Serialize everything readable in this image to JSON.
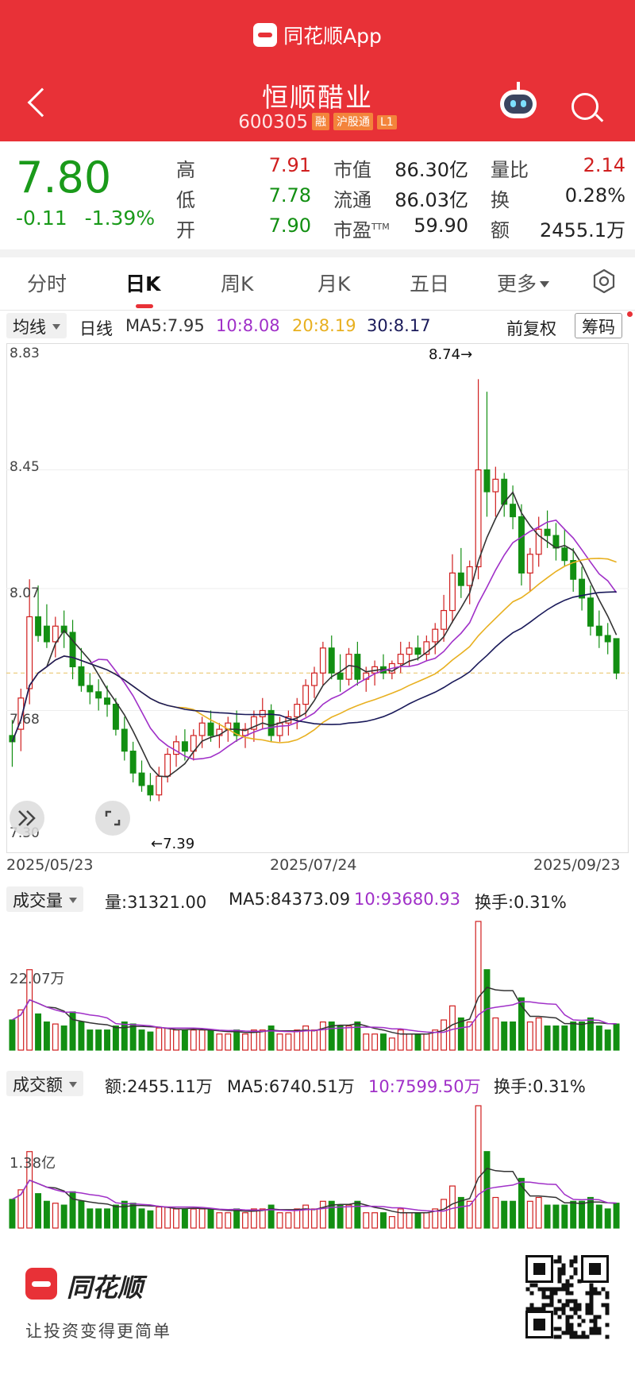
{
  "app": {
    "brand": "同花顺App",
    "back_icon": "back-arrow-icon",
    "robot_icon": "robot-assistant-icon",
    "search_icon": "search-icon"
  },
  "stock": {
    "name": "恒顺醋业",
    "code": "600305",
    "tags": [
      "融",
      "沪股通",
      "L1"
    ]
  },
  "quote": {
    "price": "7.80",
    "change": "-0.11",
    "change_pct": "-1.39%",
    "fields": [
      {
        "label": "高",
        "value": "7.91"
      },
      {
        "label": "低",
        "value": "7.78"
      },
      {
        "label": "开",
        "value": "7.90"
      },
      {
        "label": "市值",
        "value": "86.30亿"
      },
      {
        "label": "流通",
        "value": "86.03亿"
      },
      {
        "label": "市盈",
        "sup": "TTM",
        "value": "59.90"
      },
      {
        "label": "量比",
        "value": "2.14"
      },
      {
        "label": "换",
        "value": "0.28%"
      },
      {
        "label": "额",
        "value": "2455.1万"
      }
    ]
  },
  "tabs": [
    "分时",
    "日K",
    "周K",
    "月K",
    "五日",
    "更多"
  ],
  "active_tab": "日K",
  "indicator": {
    "dropdown": "均线",
    "period": "日线",
    "ma5": "MA5:7.95",
    "ma10": "10:8.08",
    "ma20": "20:8.19",
    "ma30": "30:8.17",
    "adjust": "前复权",
    "chips_button": "筹码"
  },
  "kline": {
    "y_labels": [
      "8.83",
      "8.45",
      "8.07",
      "7.68",
      "7.30"
    ],
    "x_labels": [
      "2025/05/23",
      "2025/07/24",
      "2025/09/23"
    ],
    "high_note": "8.74→",
    "low_note": "←7.39"
  },
  "volume": {
    "dropdown": "成交量",
    "value": "量:31321.00",
    "ma5": "MA5:84373.09",
    "ma10": "10:93680.93",
    "turnover": "换手:0.31%",
    "axis_label": "22.07万"
  },
  "amount": {
    "dropdown": "成交额",
    "value": "额:2455.11万",
    "ma5": "MA5:6740.51万",
    "ma10": "10:7599.50万",
    "turnover": "换手:0.31%",
    "axis_label": "1.38亿"
  },
  "footer": {
    "name": "同花顺",
    "slogan": "让投资变得更简单",
    "qr_icon": "qr-code-icon"
  },
  "colors": {
    "up": "#d01f1f",
    "down": "#128f12",
    "ma5": "#333333",
    "ma10": "#a030c8",
    "ma20": "#e8b020",
    "ma30": "#1a1a5a",
    "brand": "#e83137"
  },
  "chart_data": {
    "type": "candlestick",
    "ylim": [
      7.3,
      8.83
    ],
    "last_close_line": 7.8,
    "ohlc": [
      [
        7.6,
        7.65,
        7.5,
        7.58
      ],
      [
        7.62,
        7.75,
        7.55,
        7.72
      ],
      [
        7.75,
        8.1,
        7.7,
        7.98
      ],
      [
        7.98,
        8.08,
        7.9,
        7.92
      ],
      [
        7.95,
        8.02,
        7.88,
        7.9
      ],
      [
        7.9,
        7.98,
        7.85,
        7.95
      ],
      [
        7.95,
        8.0,
        7.88,
        7.93
      ],
      [
        7.93,
        7.97,
        7.78,
        7.82
      ],
      [
        7.82,
        7.88,
        7.74,
        7.76
      ],
      [
        7.76,
        7.8,
        7.7,
        7.74
      ],
      [
        7.74,
        7.78,
        7.68,
        7.72
      ],
      [
        7.72,
        7.76,
        7.66,
        7.7
      ],
      [
        7.7,
        7.72,
        7.6,
        7.62
      ],
      [
        7.62,
        7.66,
        7.52,
        7.55
      ],
      [
        7.55,
        7.58,
        7.45,
        7.48
      ],
      [
        7.48,
        7.52,
        7.42,
        7.44
      ],
      [
        7.44,
        7.48,
        7.39,
        7.41
      ],
      [
        7.41,
        7.5,
        7.39,
        7.47
      ],
      [
        7.47,
        7.56,
        7.45,
        7.54
      ],
      [
        7.54,
        7.6,
        7.5,
        7.58
      ],
      [
        7.58,
        7.62,
        7.52,
        7.55
      ],
      [
        7.55,
        7.62,
        7.52,
        7.6
      ],
      [
        7.6,
        7.66,
        7.56,
        7.64
      ],
      [
        7.64,
        7.68,
        7.58,
        7.6
      ],
      [
        7.6,
        7.64,
        7.56,
        7.62
      ],
      [
        7.62,
        7.66,
        7.58,
        7.64
      ],
      [
        7.64,
        7.68,
        7.58,
        7.6
      ],
      [
        7.6,
        7.64,
        7.56,
        7.62
      ],
      [
        7.62,
        7.68,
        7.58,
        7.66
      ],
      [
        7.66,
        7.72,
        7.62,
        7.68
      ],
      [
        7.68,
        7.7,
        7.58,
        7.6
      ],
      [
        7.6,
        7.66,
        7.58,
        7.64
      ],
      [
        7.64,
        7.68,
        7.6,
        7.66
      ],
      [
        7.66,
        7.72,
        7.62,
        7.7
      ],
      [
        7.7,
        7.78,
        7.66,
        7.76
      ],
      [
        7.76,
        7.82,
        7.72,
        7.8
      ],
      [
        7.8,
        7.9,
        7.76,
        7.88
      ],
      [
        7.88,
        7.92,
        7.78,
        7.8
      ],
      [
        7.8,
        7.86,
        7.74,
        7.78
      ],
      [
        7.78,
        7.88,
        7.76,
        7.86
      ],
      [
        7.86,
        7.9,
        7.76,
        7.78
      ],
      [
        7.78,
        7.82,
        7.74,
        7.8
      ],
      [
        7.8,
        7.84,
        7.76,
        7.82
      ],
      [
        7.82,
        7.86,
        7.78,
        7.8
      ],
      [
        7.8,
        7.84,
        7.78,
        7.83
      ],
      [
        7.83,
        7.9,
        7.8,
        7.86
      ],
      [
        7.86,
        7.9,
        7.82,
        7.88
      ],
      [
        7.88,
        7.92,
        7.84,
        7.86
      ],
      [
        7.86,
        7.92,
        7.84,
        7.9
      ],
      [
        7.9,
        7.96,
        7.86,
        7.94
      ],
      [
        7.94,
        8.05,
        7.9,
        8.0
      ],
      [
        8.0,
        8.18,
        7.96,
        8.12
      ],
      [
        8.12,
        8.2,
        8.04,
        8.08
      ],
      [
        8.08,
        8.16,
        8.02,
        8.14
      ],
      [
        8.14,
        8.74,
        8.1,
        8.45
      ],
      [
        8.45,
        8.7,
        8.3,
        8.38
      ],
      [
        8.38,
        8.46,
        8.3,
        8.42
      ],
      [
        8.42,
        8.44,
        8.3,
        8.34
      ],
      [
        8.34,
        8.4,
        8.26,
        8.3
      ],
      [
        8.3,
        8.34,
        8.08,
        8.12
      ],
      [
        8.12,
        8.2,
        8.06,
        8.18
      ],
      [
        8.18,
        8.3,
        8.14,
        8.26
      ],
      [
        8.26,
        8.32,
        8.2,
        8.24
      ],
      [
        8.24,
        8.28,
        8.16,
        8.2
      ],
      [
        8.2,
        8.26,
        8.14,
        8.16
      ],
      [
        8.16,
        8.2,
        8.06,
        8.1
      ],
      [
        8.1,
        8.14,
        8.0,
        8.04
      ],
      [
        8.04,
        8.08,
        7.92,
        7.95
      ],
      [
        7.95,
        8.0,
        7.88,
        7.92
      ],
      [
        7.92,
        7.96,
        7.86,
        7.9
      ],
      [
        7.91,
        7.91,
        7.78,
        7.8
      ]
    ]
  }
}
